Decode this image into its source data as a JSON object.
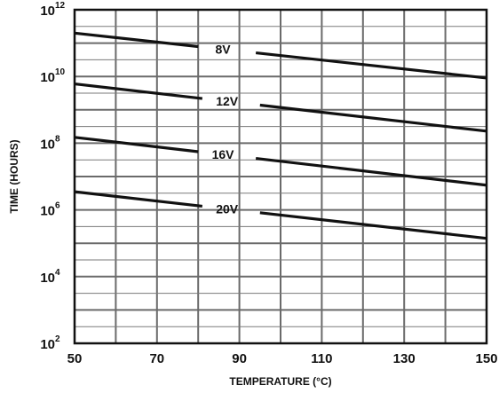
{
  "chart_data": {
    "type": "line",
    "xlabel": "TEMPERATURE (°C)",
    "ylabel": "TIME (HOURS)",
    "xlim": [
      50,
      150
    ],
    "ylim": [
      100,
      1000000000000
    ],
    "yscale": "log",
    "grid": true,
    "legend": "none",
    "x_ticks": [
      {
        "value": 50,
        "label": "50"
      },
      {
        "value": 70,
        "label": "70"
      },
      {
        "value": 90,
        "label": "90"
      },
      {
        "value": 110,
        "label": "110"
      },
      {
        "value": 130,
        "label": "130"
      },
      {
        "value": 150,
        "label": "150"
      }
    ],
    "y_ticks": [
      {
        "value": 100,
        "base": "10",
        "exp": "2"
      },
      {
        "value": 10000,
        "base": "10",
        "exp": "4"
      },
      {
        "value": 1000000,
        "base": "10",
        "exp": "6"
      },
      {
        "value": 100000000,
        "base": "10",
        "exp": "8"
      },
      {
        "value": 10000000000,
        "base": "10",
        "exp": "10"
      },
      {
        "value": 1000000000000,
        "base": "10",
        "exp": "12"
      }
    ],
    "series": [
      {
        "name": "8V",
        "label_x": 86,
        "x": [
          50,
          150
        ],
        "y": [
          200000000000,
          9000000000
        ]
      },
      {
        "name": "12V",
        "label_x": 87,
        "x": [
          50,
          150
        ],
        "y": [
          6000000000,
          230000000
        ]
      },
      {
        "name": "16V",
        "label_x": 86,
        "x": [
          50,
          150
        ],
        "y": [
          150000000,
          5500000
        ]
      },
      {
        "name": "20V",
        "label_x": 87,
        "x": [
          50,
          150
        ],
        "y": [
          3500000,
          140000
        ]
      }
    ],
    "colors": {
      "curve": "#111111",
      "grid_major": "#6a6a6a",
      "grid_minor": "#7a7a7a",
      "frame": "#111111"
    }
  }
}
